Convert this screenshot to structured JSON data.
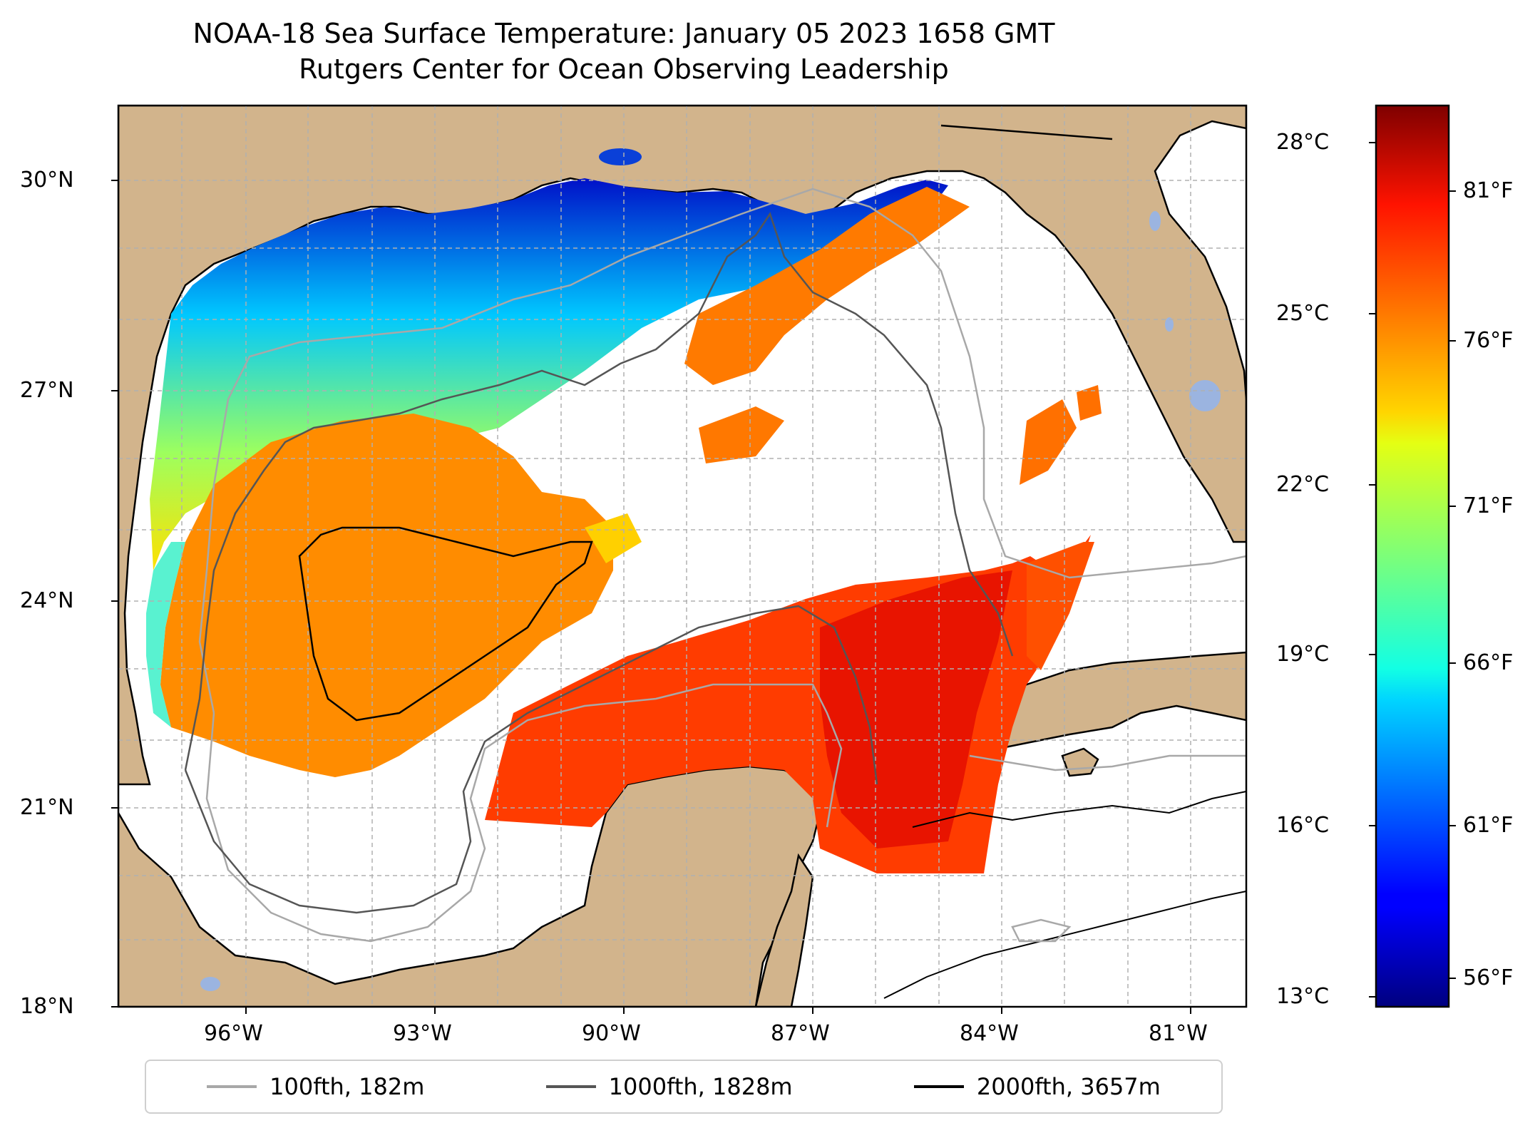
{
  "title": {
    "line1": "NOAA-18 Sea Surface Temperature: January 05 2023 1658 GMT",
    "line2": "Rutgers Center for Ocean Observing Leadership"
  },
  "map": {
    "latitude_labels": [
      "30°N",
      "27°N",
      "24°N",
      "21°N",
      "18°N"
    ],
    "longitude_labels": [
      "96°W",
      "93°W",
      "90°W",
      "87°W",
      "84°W",
      "81°W"
    ],
    "colors": {
      "land": "#d2b48c",
      "no_data": "#ffffff",
      "lakes": "#9bb4e0",
      "grid": "#b0b0b0"
    }
  },
  "colorbar": {
    "celsius_labels": [
      "28°C",
      "25°C",
      "22°C",
      "19°C",
      "16°C",
      "13°C"
    ],
    "fahrenheit_labels": [
      "81°F",
      "76°F",
      "71°F",
      "66°F",
      "61°F",
      "56°F"
    ],
    "colormap": "jet"
  },
  "legend": [
    {
      "label": "100fth, 182m",
      "color": "#a8a8a8"
    },
    {
      "label": "1000fth, 1828m",
      "color": "#555555"
    },
    {
      "label": "2000fth, 3657m",
      "color": "#000000"
    }
  ]
}
